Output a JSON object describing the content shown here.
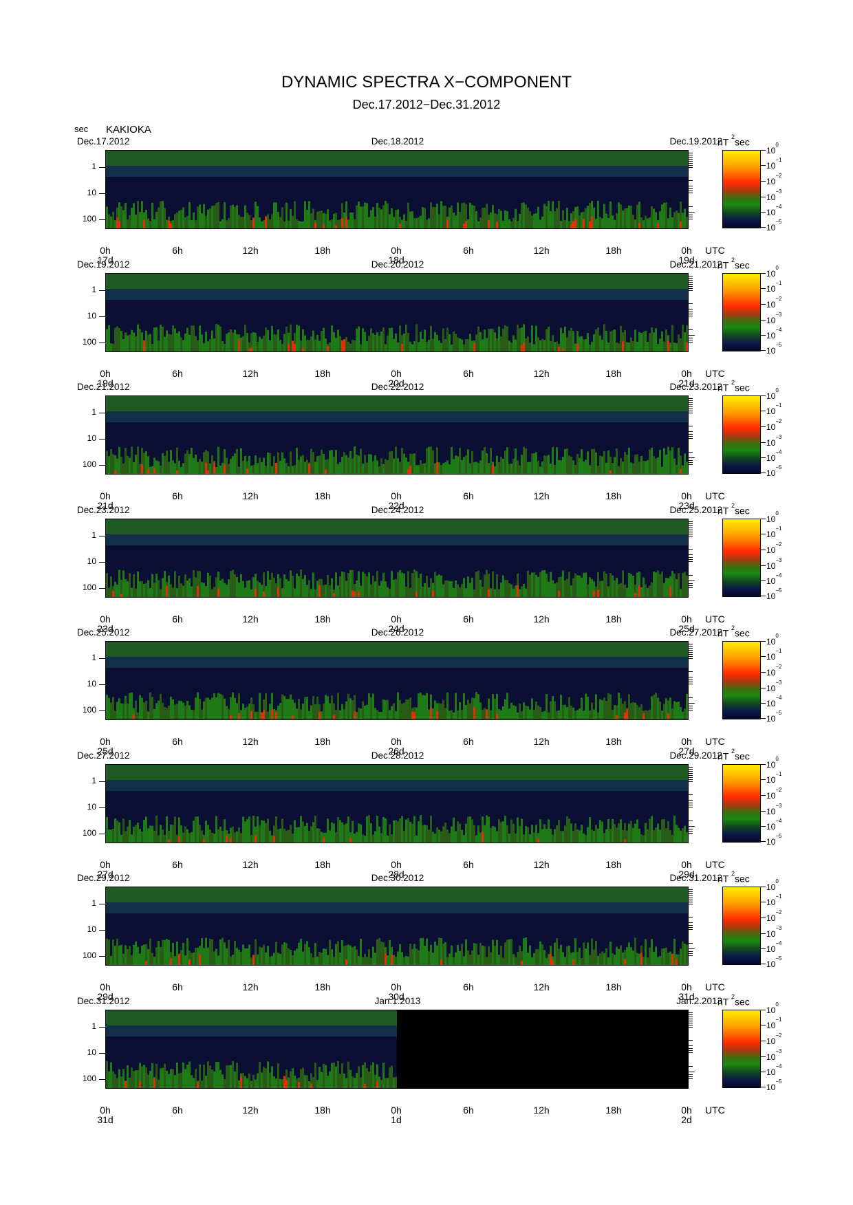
{
  "title": "DYNAMIC SPECTRA X−COMPONENT",
  "subtitle": "Dec.17.2012−Dec.31.2012",
  "unit_label": "sec",
  "station": "KAKIOKA",
  "colorbar": {
    "unit": "nT",
    "unit_exp": "2",
    "unit_suffix": "sec",
    "labels": [
      {
        "base": "10",
        "exp": "0"
      },
      {
        "base": "10",
        "exp": "−1"
      },
      {
        "base": "10",
        "exp": "−2"
      },
      {
        "base": "10",
        "exp": "−3"
      },
      {
        "base": "10",
        "exp": "−4"
      },
      {
        "base": "10",
        "exp": "−5"
      }
    ]
  },
  "y_tick_labels": [
    "1",
    "10",
    "100"
  ],
  "x_tick_labels": [
    "0h",
    "6h",
    "12h",
    "18h",
    "0h",
    "6h",
    "12h",
    "18h",
    "0h"
  ],
  "utc_label": "UTC",
  "panels": [
    {
      "date_left": "Dec.17.2012",
      "date_mid": "Dec.18.2012",
      "date_right": "Dec.19.2012",
      "day_start": "17d",
      "day_mid": "18d",
      "day_end": "19d"
    },
    {
      "date_left": "Dec.19.2012",
      "date_mid": "Dec.20.2012",
      "date_right": "Dec.21.2012",
      "day_start": "19d",
      "day_mid": "20d",
      "day_end": "21d"
    },
    {
      "date_left": "Dec.21.2012",
      "date_mid": "Dec.22.2012",
      "date_right": "Dec.23.2012",
      "day_start": "21d",
      "day_mid": "22d",
      "day_end": "23d"
    },
    {
      "date_left": "Dec.23.2012",
      "date_mid": "Dec.24.2012",
      "date_right": "Dec.25.2012",
      "day_start": "23d",
      "day_mid": "24d",
      "day_end": "25d"
    },
    {
      "date_left": "Dec.25.2012",
      "date_mid": "Dec.26.2012",
      "date_right": "Dec.27.2012",
      "day_start": "25d",
      "day_mid": "26d",
      "day_end": "27d"
    },
    {
      "date_left": "Dec.27.2012",
      "date_mid": "Dec.28.2012",
      "date_right": "Dec.29.2012",
      "day_start": "27d",
      "day_mid": "28d",
      "day_end": "29d"
    },
    {
      "date_left": "Dec.29.2012",
      "date_mid": "Dec.30.2012",
      "date_right": "Dec.31.2012",
      "day_start": "29d",
      "day_mid": "30d",
      "day_end": "31d"
    },
    {
      "date_left": "Dec.31.2012",
      "date_mid": "Jan.1.2013",
      "date_right": "Jan.2.2013",
      "day_start": "31d",
      "day_mid": "1d",
      "day_end": "2d",
      "data_until_hour": 24
    }
  ],
  "chart_data": {
    "type": "heatmap",
    "title": "DYNAMIC SPECTRA X−COMPONENT",
    "subtitle": "Dec.17.2012−Dec.31.2012",
    "station": "KAKIOKA",
    "x_axis": "UTC hours, 48 h per panel",
    "xlim_hours": [
      0,
      48
    ],
    "y_axis": "period (sec), log scale",
    "y_log": true,
    "yticks": [
      1,
      10,
      100
    ],
    "color_scale": "power spectral density (nT^2 sec), log scale",
    "color_range": [
      1e-05,
      1
    ],
    "colors": {
      "high": "#ffee00",
      "mid_high": "#ff2a00",
      "mid": "#1a8a10",
      "low": "#06062a"
    }
  }
}
